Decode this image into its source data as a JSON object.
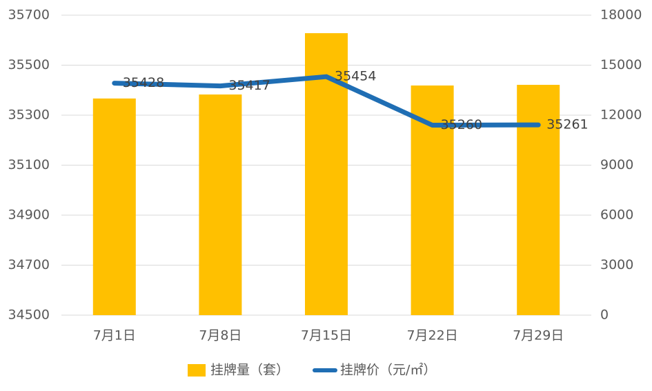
{
  "chart_data": {
    "type": "combo",
    "categories": [
      "7月1日",
      "7月8日",
      "7月15日",
      "7月22日",
      "7月29日"
    ],
    "series": [
      {
        "name": "挂牌量（套）",
        "type": "bar",
        "axis": "y2",
        "color": "#FFC000",
        "values": [
          13000,
          13240,
          16920,
          13780,
          13820
        ]
      },
      {
        "name": "挂牌价（元/㎡）",
        "type": "line",
        "color": "#1F6EB4",
        "values": [
          35428,
          35417,
          35454,
          35260,
          35261
        ],
        "data_labels": true
      }
    ],
    "ylim": [
      34500,
      35700
    ],
    "yticks": [
      34500,
      34700,
      34900,
      35100,
      35300,
      35500,
      35700
    ],
    "y2lim": [
      0,
      18000
    ],
    "y2ticks": [
      0,
      3000,
      6000,
      9000,
      12000,
      15000,
      18000
    ],
    "grid": true,
    "legend": "bottom"
  }
}
